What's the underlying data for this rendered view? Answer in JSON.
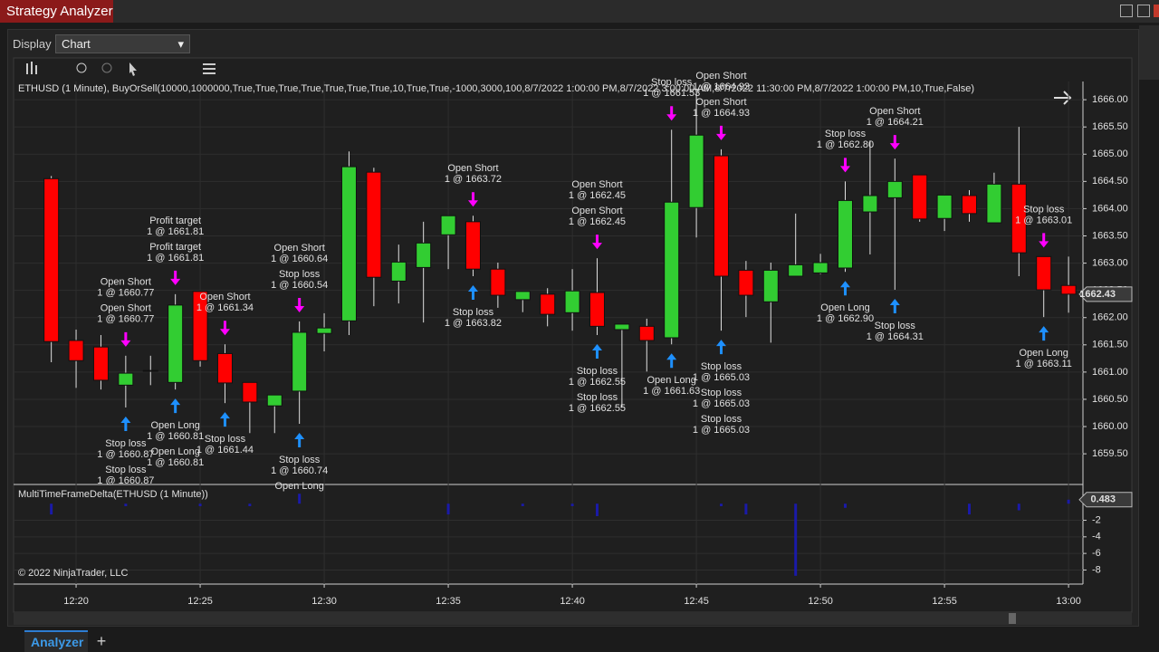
{
  "window": {
    "title": "Strategy Analyzer",
    "display_label": "Display",
    "display_value": "Chart",
    "tab": "Analyzer"
  },
  "chart_data": {
    "type": "candlestick",
    "caption": "ETHUSD (1 Minute), BuyOrSell(10000,1000000,True,True,True,True,True,True,True,10,True,True,-1000,3000,100,8/7/2022 1:00:00 PM,8/7/2022 3:00:00 AM,8/7/2022 11:30:00 PM,8/7/2022 1:00:00 PM,10,True,False)",
    "copyright": "© 2022 NinjaTrader, LLC",
    "x": [
      739,
      740,
      741,
      742,
      743,
      744,
      745,
      746,
      747,
      748,
      749,
      750,
      751,
      752,
      753,
      754,
      755,
      756,
      757,
      758,
      759,
      760,
      761,
      762,
      763,
      764,
      765,
      766,
      767,
      768,
      769,
      770,
      771,
      772,
      773,
      774,
      775,
      776,
      777,
      778,
      779,
      780
    ],
    "open": [
      1664.55,
      1661.58,
      1661.46,
      1660.76,
      1661.03,
      1660.81,
      1662.48,
      1661.34,
      1660.81,
      1660.38,
      1660.65,
      1661.71,
      1661.94,
      1664.67,
      1662.67,
      1662.92,
      1663.52,
      1663.76,
      1662.89,
      1662.33,
      1662.43,
      1662.09,
      1662.46,
      1661.78,
      1661.84,
      1661.63,
      1664.02,
      1664.97,
      1662.87,
      1662.29,
      1662.76,
      1662.82,
      1662.91,
      1663.94,
      1664.2,
      1664.62,
      1663.82,
      1664.24,
      1663.74,
      1664.45,
      1663.12,
      1662.59
    ],
    "high": [
      1664.6,
      1661.78,
      1661.68,
      1661.3,
      1661.3,
      1662.43,
      1662.48,
      1661.51,
      1660.81,
      1660.58,
      1661.93,
      1662.08,
      1665.05,
      1664.75,
      1663.34,
      1663.76,
      1663.87,
      1663.87,
      1663.01,
      1662.48,
      1662.54,
      1662.89,
      1663.09,
      1661.88,
      1661.98,
      1665.45,
      1666.17,
      1665.09,
      1663.04,
      1663.01,
      1663.91,
      1663.17,
      1664.5,
      1665.25,
      1664.92,
      1664.62,
      1664.25,
      1664.34,
      1664.66,
      1665.5,
      1663.12,
      1663.12
    ],
    "low": [
      1661.18,
      1660.71,
      1660.68,
      1660.35,
      1660.76,
      1660.68,
      1661.1,
      1660.43,
      1659.88,
      1659.88,
      1660.05,
      1661.38,
      1661.68,
      1662.21,
      1662.26,
      1661.91,
      1662.89,
      1662.76,
      1662.18,
      1662.1,
      1661.84,
      1661.76,
      1661.68,
      1660.35,
      1661.01,
      1661.51,
      1663.47,
      1661.76,
      1662.01,
      1661.54,
      1662.76,
      1662.8,
      1662.84,
      1663.16,
      1662.51,
      1663.76,
      1663.59,
      1663.76,
      1663.74,
      1662.76,
      1662.01,
      1662.09
    ],
    "close": [
      1661.56,
      1661.21,
      1660.85,
      1660.98,
      1661.03,
      1662.23,
      1661.21,
      1660.8,
      1660.45,
      1660.58,
      1661.73,
      1661.81,
      1664.77,
      1662.74,
      1663.02,
      1663.37,
      1663.87,
      1662.89,
      1662.41,
      1662.48,
      1662.06,
      1662.49,
      1661.84,
      1661.88,
      1661.58,
      1664.12,
      1665.35,
      1662.76,
      1662.41,
      1662.87,
      1662.97,
      1663.01,
      1664.15,
      1664.24,
      1664.5,
      1663.81,
      1664.25,
      1663.91,
      1664.45,
      1663.19,
      1662.51,
      1662.43
    ],
    "up_color": "#32cd32",
    "down_color": "#ff0000",
    "xlim": [
      737.48,
      780.58
    ],
    "xticks": [
      {
        "value": 740,
        "label": "12:20"
      },
      {
        "value": 745,
        "label": "12:25"
      },
      {
        "value": 750,
        "label": "12:30"
      },
      {
        "value": 755,
        "label": "12:35"
      },
      {
        "value": 760,
        "label": "12:40"
      },
      {
        "value": 765,
        "label": "12:45"
      },
      {
        "value": 770,
        "label": "12:50"
      },
      {
        "value": 775,
        "label": "12:55"
      },
      {
        "value": 780,
        "label": "13:00"
      }
    ],
    "ylim": [
      1658.97,
      1666.7
    ],
    "yticks": [
      {
        "value": 1659.5,
        "label": "1659.50"
      },
      {
        "value": 1660,
        "label": "1660.00"
      },
      {
        "value": 1660.5,
        "label": "1660.50"
      },
      {
        "value": 1661,
        "label": "1661.00"
      },
      {
        "value": 1661.5,
        "label": "1661.50"
      },
      {
        "value": 1662,
        "label": "1662.00"
      },
      {
        "value": 1662.5,
        "label": "1662.50"
      },
      {
        "value": 1663,
        "label": "1663.00"
      },
      {
        "value": 1663.5,
        "label": "1663.50"
      },
      {
        "value": 1664,
        "label": "1664.00"
      },
      {
        "value": 1664.5,
        "label": "1664.50"
      },
      {
        "value": 1665,
        "label": "1665.00"
      },
      {
        "value": 1665.5,
        "label": "1665.50"
      },
      {
        "value": 1666,
        "label": "1666.00"
      }
    ],
    "grid": true,
    "markers": [
      {
        "x": 742,
        "side": "sell",
        "label": "Open Short",
        "fill": "1 @ 1660.77"
      },
      {
        "x": 742,
        "side": "sell",
        "label": "Open Short",
        "fill": "1 @ 1660.77"
      },
      {
        "x": 742,
        "side": "buy",
        "label": "Stop loss",
        "fill": "1 @ 1660.87"
      },
      {
        "x": 742,
        "side": "buy",
        "label": "Stop loss",
        "fill": "1 @ 1660.87"
      },
      {
        "x": 744,
        "side": "sell",
        "label": "Profit target",
        "fill": "1 @ 1661.81"
      },
      {
        "x": 744,
        "side": "sell",
        "label": "Profit target",
        "fill": "1 @ 1661.81"
      },
      {
        "x": 744,
        "side": "buy",
        "label": "Open Long",
        "fill": "1 @ 1660.81"
      },
      {
        "x": 744,
        "side": "buy",
        "label": "Open Long",
        "fill": "1 @ 1660.81"
      },
      {
        "x": 746,
        "side": "sell",
        "label": "Open Short",
        "fill": "1 @ 1661.34"
      },
      {
        "x": 746,
        "side": "buy",
        "label": "Stop loss",
        "fill": "1 @ 1661.44"
      },
      {
        "x": 749,
        "side": "sell",
        "label": "Stop loss",
        "fill": "1 @ 1660.54"
      },
      {
        "x": 749,
        "side": "sell",
        "label": "Open Short",
        "fill": "1 @ 1660.64"
      },
      {
        "x": 749,
        "side": "buy",
        "label": "Stop loss",
        "fill": "1 @ 1660.74"
      },
      {
        "x": 749,
        "side": "buy",
        "label": "Open Long"
      },
      {
        "x": 756,
        "side": "sell",
        "label": "Open Short",
        "fill": "1 @ 1663.72"
      },
      {
        "x": 756,
        "side": "buy",
        "label": "Stop loss",
        "fill": "1 @ 1663.82"
      },
      {
        "x": 761,
        "side": "sell",
        "label": "Open Short",
        "fill": "1 @ 1662.45"
      },
      {
        "x": 761,
        "side": "sell",
        "label": "Open Short",
        "fill": "1 @ 1662.45"
      },
      {
        "x": 761,
        "side": "buy",
        "label": "Stop loss",
        "fill": "1 @ 1662.55"
      },
      {
        "x": 761,
        "side": "buy",
        "label": "Stop loss",
        "fill": "1 @ 1662.55"
      },
      {
        "x": 764,
        "side": "sell",
        "label": "Stop loss",
        "fill": "1 @ 1661.53"
      },
      {
        "x": 764,
        "side": "buy",
        "label": "Open Long",
        "fill": "1 @ 1661.63"
      },
      {
        "x": 766,
        "side": "sell",
        "label": "Open Short",
        "fill": "1 @ 1664.93"
      },
      {
        "x": 766,
        "side": "sell",
        "label": "Open Short",
        "fill": "1 @ 1664.93"
      },
      {
        "x": 766,
        "side": "buy",
        "label": "Stop loss",
        "fill": "1 @ 1665.03"
      },
      {
        "x": 766,
        "side": "buy",
        "label": "Stop loss",
        "fill": "1 @ 1665.03"
      },
      {
        "x": 766,
        "side": "buy",
        "label": "Stop loss",
        "fill": "1 @ 1665.03"
      },
      {
        "x": 771,
        "side": "sell",
        "label": "Stop loss",
        "fill": "1 @ 1662.80"
      },
      {
        "x": 771,
        "side": "buy",
        "label": "Open Long",
        "fill": "1 @ 1662.90"
      },
      {
        "x": 773,
        "side": "sell",
        "label": "Open Short",
        "fill": "1 @ 1664.21"
      },
      {
        "x": 773,
        "side": "buy",
        "label": "Stop loss",
        "fill": "1 @ 1664.31"
      },
      {
        "x": 779,
        "side": "sell",
        "label": "Stop loss",
        "fill": "1 @ 1663.01"
      },
      {
        "x": 779,
        "side": "buy",
        "label": "Open Long",
        "fill": "1 @ 1663.11"
      }
    ],
    "indicator": {
      "title": "MultiTimeFrameDelta(ETHUSD (1 Minute))",
      "color": "#1a1aa8",
      "values": [
        -1.3,
        0,
        0,
        -0.3,
        0,
        0,
        -0.3,
        0,
        -0.3,
        0,
        1.2,
        0,
        0,
        0,
        0,
        0,
        -1.3,
        0,
        0,
        -0.3,
        0,
        -0.3,
        -1.5,
        0,
        0,
        0,
        0,
        -0.3,
        -1.3,
        0,
        -8.7,
        0,
        -0.5,
        0,
        0,
        0,
        0,
        -1.3,
        0,
        -0.8,
        0,
        0.483
      ],
      "ylim": [
        -9.7,
        2.1
      ],
      "yticks": [
        -2,
        -4,
        -6,
        -8
      ]
    }
  }
}
